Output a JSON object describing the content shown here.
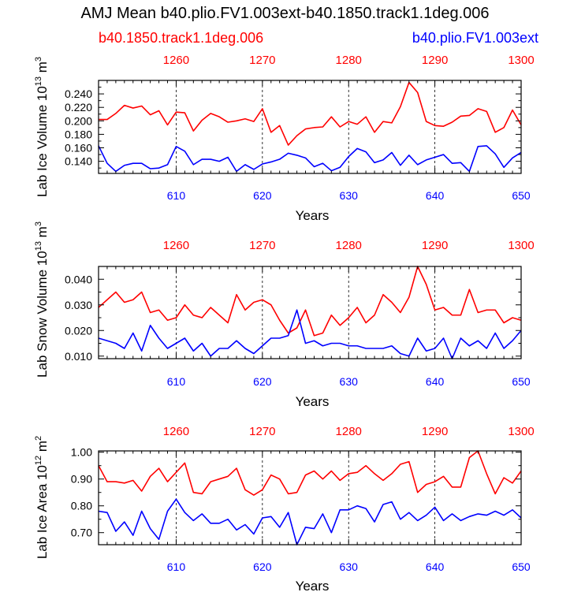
{
  "title": "AMJ Mean b40.plio.FV1.003ext-b40.1850.track1.1deg.006",
  "legend": {
    "red_label": "b40.1850.track1.1deg.006",
    "blue_label": "b40.plio.FV1.003ext"
  },
  "colors": {
    "red": "#ff0000",
    "blue": "#0000ff",
    "axis": "#000000",
    "grid": "#000000"
  },
  "chart_data": [
    {
      "type": "line",
      "title": "",
      "ylabel_main": "Lab Ice Volume 10",
      "ylabel_exp": "13",
      "ylabel_unit": " m",
      "ylabel_unit_exp": "3",
      "xlabel": "Years",
      "xlim": [
        601,
        650
      ],
      "ylim": [
        0.122,
        0.26
      ],
      "yticks": [
        0.14,
        0.16,
        0.18,
        0.2,
        0.22,
        0.24
      ],
      "ytick_labels": [
        "0.140",
        "0.160",
        "0.180",
        "0.200",
        "0.220",
        "0.240"
      ],
      "xticks_bottom": [
        610,
        620,
        630,
        640,
        650
      ],
      "xtick_labels_bottom": [
        "610",
        "620",
        "630",
        "640",
        "650"
      ],
      "xticks_top": [
        610,
        620,
        630,
        640,
        650
      ],
      "xtick_labels_top": [
        "1260",
        "1270",
        "1280",
        "1290",
        "1300"
      ],
      "gridlines_x": [
        610,
        620,
        630,
        640
      ],
      "x": [
        601,
        602,
        603,
        604,
        605,
        606,
        607,
        608,
        609,
        610,
        611,
        612,
        613,
        614,
        615,
        616,
        617,
        618,
        619,
        620,
        621,
        622,
        623,
        624,
        625,
        626,
        627,
        628,
        629,
        630,
        631,
        632,
        633,
        634,
        635,
        636,
        637,
        638,
        639,
        640,
        641,
        642,
        643,
        644,
        645,
        646,
        647,
        648,
        649,
        650
      ],
      "series": [
        {
          "name": "b40.1850.track1.1deg.006",
          "color": "#ff0000",
          "values": [
            0.202,
            0.202,
            0.211,
            0.223,
            0.219,
            0.222,
            0.209,
            0.215,
            0.194,
            0.213,
            0.212,
            0.185,
            0.201,
            0.211,
            0.206,
            0.198,
            0.2,
            0.203,
            0.199,
            0.218,
            0.183,
            0.193,
            0.164,
            0.178,
            0.188,
            0.19,
            0.191,
            0.206,
            0.191,
            0.199,
            0.195,
            0.206,
            0.183,
            0.199,
            0.197,
            0.221,
            0.257,
            0.242,
            0.199,
            0.193,
            0.192,
            0.198,
            0.207,
            0.208,
            0.218,
            0.214,
            0.183,
            0.19,
            0.216,
            0.194
          ]
        },
        {
          "name": "b40.plio.FV1.003ext",
          "color": "#0000ff",
          "values": [
            0.163,
            0.137,
            0.125,
            0.134,
            0.137,
            0.137,
            0.129,
            0.13,
            0.135,
            0.162,
            0.155,
            0.135,
            0.143,
            0.143,
            0.14,
            0.146,
            0.125,
            0.135,
            0.128,
            0.136,
            0.139,
            0.143,
            0.152,
            0.149,
            0.145,
            0.132,
            0.137,
            0.126,
            0.131,
            0.147,
            0.159,
            0.154,
            0.138,
            0.142,
            0.153,
            0.134,
            0.149,
            0.135,
            0.142,
            0.146,
            0.15,
            0.137,
            0.138,
            0.125,
            0.162,
            0.163,
            0.151,
            0.131,
            0.145,
            0.153
          ]
        }
      ]
    },
    {
      "type": "line",
      "title": "",
      "ylabel_main": "Lab Snow Volume 10",
      "ylabel_exp": "13",
      "ylabel_unit": " m",
      "ylabel_unit_exp": "3",
      "xlabel": "Years",
      "xlim": [
        601,
        650
      ],
      "ylim": [
        0.009,
        0.045
      ],
      "yticks": [
        0.01,
        0.02,
        0.03,
        0.04
      ],
      "ytick_labels": [
        "0.010",
        "0.020",
        "0.030",
        "0.040"
      ],
      "xticks_bottom": [
        610,
        620,
        630,
        640,
        650
      ],
      "xtick_labels_bottom": [
        "610",
        "620",
        "630",
        "640",
        "650"
      ],
      "xticks_top": [
        610,
        620,
        630,
        640,
        650
      ],
      "xtick_labels_top": [
        "1260",
        "1270",
        "1280",
        "1290",
        "1300"
      ],
      "gridlines_x": [
        610,
        620,
        630,
        640
      ],
      "x": [
        601,
        602,
        603,
        604,
        605,
        606,
        607,
        608,
        609,
        610,
        611,
        612,
        613,
        614,
        615,
        616,
        617,
        618,
        619,
        620,
        621,
        622,
        623,
        624,
        625,
        626,
        627,
        628,
        629,
        630,
        631,
        632,
        633,
        634,
        635,
        636,
        637,
        638,
        639,
        640,
        641,
        642,
        643,
        644,
        645,
        646,
        647,
        648,
        649,
        650
      ],
      "series": [
        {
          "name": "b40.1850.track1.1deg.006",
          "color": "#ff0000",
          "values": [
            0.029,
            0.032,
            0.035,
            0.031,
            0.032,
            0.035,
            0.027,
            0.028,
            0.024,
            0.025,
            0.03,
            0.026,
            0.025,
            0.029,
            0.026,
            0.023,
            0.034,
            0.028,
            0.031,
            0.032,
            0.03,
            0.024,
            0.019,
            0.021,
            0.028,
            0.018,
            0.019,
            0.026,
            0.022,
            0.025,
            0.029,
            0.023,
            0.026,
            0.034,
            0.031,
            0.027,
            0.033,
            0.045,
            0.038,
            0.028,
            0.029,
            0.026,
            0.026,
            0.036,
            0.027,
            0.028,
            0.028,
            0.023,
            0.025,
            0.024
          ]
        },
        {
          "name": "b40.plio.FV1.003ext",
          "color": "#0000ff",
          "values": [
            0.017,
            0.016,
            0.015,
            0.013,
            0.019,
            0.012,
            0.022,
            0.017,
            0.013,
            0.015,
            0.017,
            0.012,
            0.015,
            0.01,
            0.013,
            0.013,
            0.016,
            0.013,
            0.011,
            0.014,
            0.017,
            0.017,
            0.018,
            0.028,
            0.015,
            0.016,
            0.014,
            0.015,
            0.015,
            0.014,
            0.014,
            0.013,
            0.013,
            0.013,
            0.014,
            0.011,
            0.01,
            0.017,
            0.012,
            0.013,
            0.017,
            0.009,
            0.017,
            0.014,
            0.016,
            0.013,
            0.019,
            0.013,
            0.016,
            0.02
          ]
        }
      ]
    },
    {
      "type": "line",
      "title": "",
      "ylabel_main": "Lab Ice Area 10",
      "ylabel_exp": "12",
      "ylabel_unit": " m",
      "ylabel_unit_exp": "2",
      "xlabel": "Years",
      "xlim": [
        601,
        650
      ],
      "ylim": [
        0.655,
        1.005
      ],
      "yticks": [
        0.7,
        0.8,
        0.9,
        1.0
      ],
      "ytick_labels": [
        "0.70",
        "0.80",
        "0.90",
        "1.00"
      ],
      "xticks_bottom": [
        610,
        620,
        630,
        640,
        650
      ],
      "xtick_labels_bottom": [
        "610",
        "620",
        "630",
        "640",
        "650"
      ],
      "xticks_top": [
        610,
        620,
        630,
        640,
        650
      ],
      "xtick_labels_top": [
        "1260",
        "1270",
        "1280",
        "1290",
        "1300"
      ],
      "gridlines_x": [
        610,
        620,
        630,
        640
      ],
      "x": [
        601,
        602,
        603,
        604,
        605,
        606,
        607,
        608,
        609,
        610,
        611,
        612,
        613,
        614,
        615,
        616,
        617,
        618,
        619,
        620,
        621,
        622,
        623,
        624,
        625,
        626,
        627,
        628,
        629,
        630,
        631,
        632,
        633,
        634,
        635,
        636,
        637,
        638,
        639,
        640,
        641,
        642,
        643,
        644,
        645,
        646,
        647,
        648,
        649,
        650
      ],
      "series": [
        {
          "name": "b40.1850.track1.1deg.006",
          "color": "#ff0000",
          "values": [
            0.95,
            0.89,
            0.89,
            0.885,
            0.895,
            0.855,
            0.91,
            0.94,
            0.89,
            0.925,
            0.96,
            0.85,
            0.845,
            0.89,
            0.9,
            0.91,
            0.94,
            0.86,
            0.84,
            0.86,
            0.915,
            0.9,
            0.845,
            0.85,
            0.915,
            0.93,
            0.9,
            0.93,
            0.895,
            0.92,
            0.925,
            0.95,
            0.92,
            0.895,
            0.92,
            0.955,
            0.965,
            0.85,
            0.88,
            0.89,
            0.91,
            0.87,
            0.87,
            0.98,
            1.005,
            0.92,
            0.845,
            0.905,
            0.885,
            0.93
          ]
        },
        {
          "name": "b40.plio.FV1.003ext",
          "color": "#0000ff",
          "values": [
            0.78,
            0.775,
            0.705,
            0.74,
            0.69,
            0.78,
            0.715,
            0.675,
            0.78,
            0.825,
            0.775,
            0.745,
            0.77,
            0.735,
            0.735,
            0.75,
            0.71,
            0.73,
            0.695,
            0.755,
            0.76,
            0.72,
            0.775,
            0.655,
            0.72,
            0.715,
            0.77,
            0.7,
            0.785,
            0.785,
            0.8,
            0.79,
            0.74,
            0.805,
            0.815,
            0.75,
            0.775,
            0.745,
            0.765,
            0.795,
            0.745,
            0.77,
            0.745,
            0.76,
            0.77,
            0.765,
            0.78,
            0.765,
            0.785,
            0.755
          ]
        }
      ]
    }
  ]
}
